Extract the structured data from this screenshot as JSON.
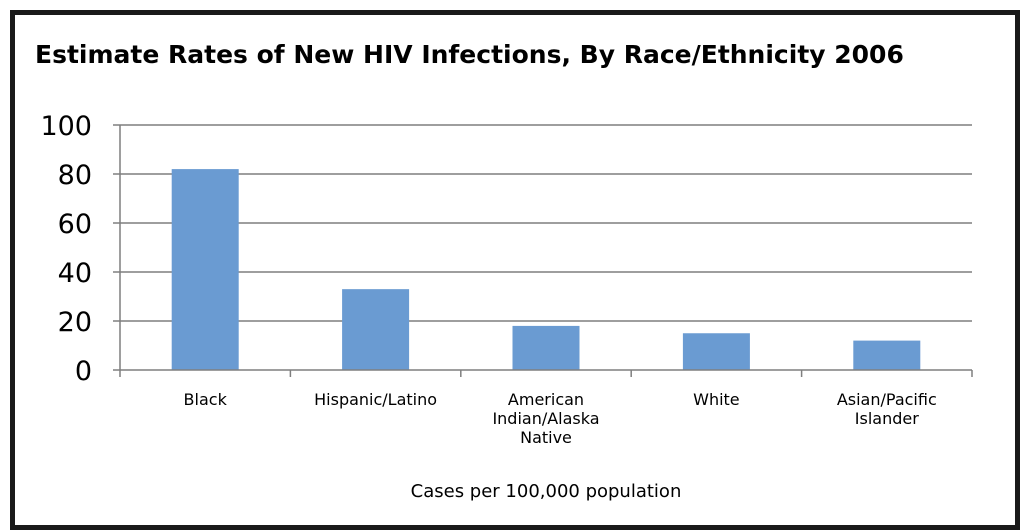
{
  "chart_data": {
    "type": "bar",
    "title": "Estimate Rates of New HIV Infections, By Race/Ethnicity 2006",
    "xlabel": "Cases per 100,000 population",
    "ylabel": "",
    "categories": [
      [
        "Black"
      ],
      [
        "Hispanic/Latino"
      ],
      [
        "American",
        "Indian/Alaska",
        "Native"
      ],
      [
        "White"
      ],
      [
        "Asian/Pacific",
        "Islander"
      ]
    ],
    "values": [
      82,
      33,
      18,
      15,
      12
    ],
    "ylim": [
      0,
      100
    ],
    "yticks": [
      "0",
      "20",
      "40",
      "60",
      "80",
      "100"
    ],
    "grid": true,
    "legend": "none",
    "colors": {
      "bar": "#6a9bd2",
      "grid": "#7f7f7f",
      "axis": "#7f7f7f",
      "frame": "#1a1a1a"
    }
  }
}
